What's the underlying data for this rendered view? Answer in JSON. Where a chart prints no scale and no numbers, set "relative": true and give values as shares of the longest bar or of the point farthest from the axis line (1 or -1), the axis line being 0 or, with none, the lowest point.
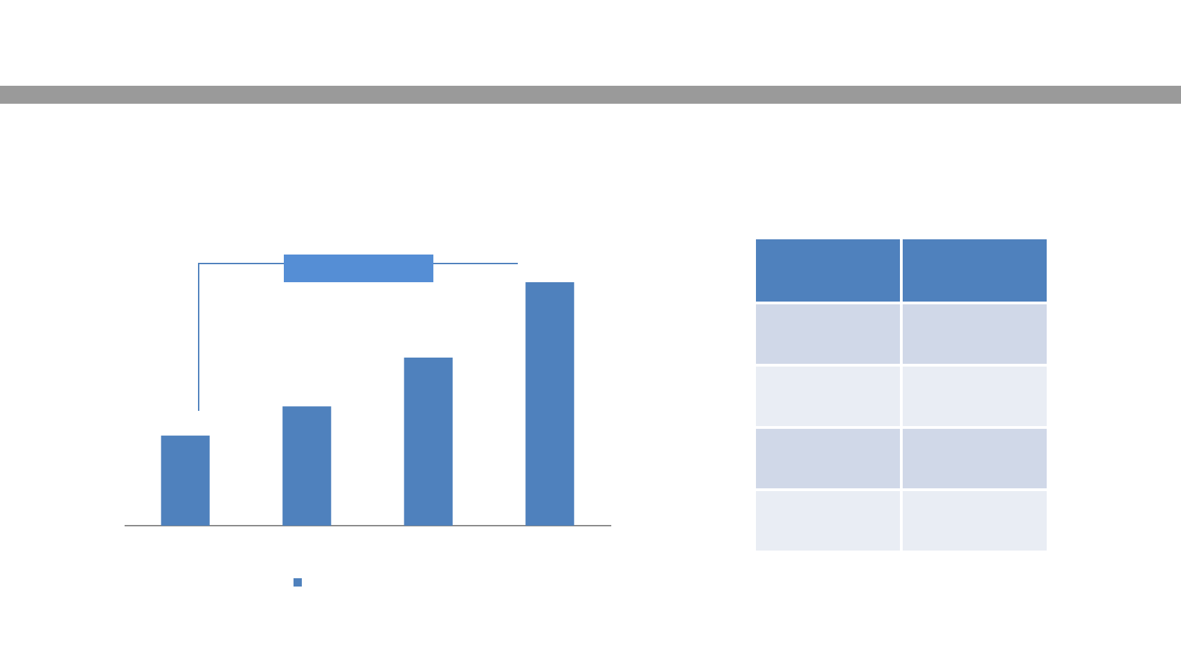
{
  "chart_data": {
    "type": "bar",
    "categories": [
      null,
      null,
      null,
      null
    ],
    "values": [
      0.37,
      0.49,
      0.69,
      1
    ],
    "color": "#4f81bd",
    "relative": true,
    "tick_labels": false,
    "grid": false,
    "legend": false
  }
}
